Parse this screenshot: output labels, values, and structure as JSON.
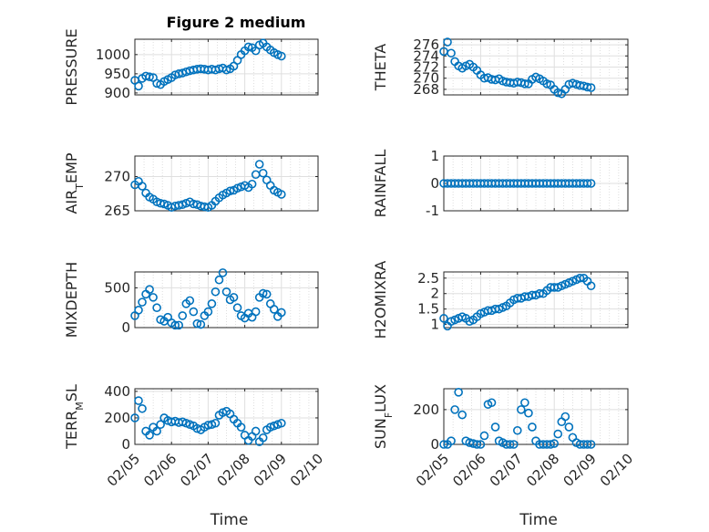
{
  "figure": {
    "title": "Figure 2 medium"
  },
  "colors": {
    "marker": "#0072BD",
    "axis": "#262626",
    "grid": "#dfdfdf"
  },
  "chart_data": [
    {
      "type": "scatter",
      "ylabel": "PRESSURE",
      "xlabel": "",
      "xlim": [
        0,
        5
      ],
      "ylim": [
        895,
        1040
      ],
      "yticks": [
        900,
        950,
        1000
      ],
      "xticks": [],
      "grid": true,
      "x": [
        0.0,
        0.1,
        0.2,
        0.3,
        0.4,
        0.5,
        0.6,
        0.7,
        0.8,
        0.9,
        1.0,
        1.1,
        1.2,
        1.3,
        1.4,
        1.5,
        1.6,
        1.7,
        1.8,
        1.9,
        2.0,
        2.1,
        2.2,
        2.3,
        2.4,
        2.5,
        2.6,
        2.7,
        2.8,
        2.9,
        3.0,
        3.1,
        3.2,
        3.3,
        3.4,
        3.5,
        3.6,
        3.7,
        3.8,
        3.9,
        4.0
      ],
      "y": [
        933,
        918,
        938,
        944,
        942,
        940,
        925,
        922,
        930,
        935,
        940,
        947,
        950,
        952,
        955,
        958,
        960,
        962,
        963,
        962,
        960,
        962,
        960,
        963,
        965,
        960,
        963,
        970,
        985,
        1000,
        1010,
        1020,
        1018,
        1010,
        1025,
        1030,
        1020,
        1012,
        1005,
        1000,
        996
      ]
    },
    {
      "type": "scatter",
      "ylabel": "THETA",
      "xlabel": "",
      "xlim": [
        0,
        5
      ],
      "ylim": [
        267,
        277
      ],
      "yticks": [
        268,
        270,
        272,
        274,
        276
      ],
      "xticks": [],
      "grid": true,
      "x": [
        0.0,
        0.1,
        0.2,
        0.3,
        0.4,
        0.5,
        0.6,
        0.7,
        0.8,
        0.9,
        1.0,
        1.1,
        1.2,
        1.3,
        1.4,
        1.5,
        1.6,
        1.7,
        1.8,
        1.9,
        2.0,
        2.1,
        2.2,
        2.3,
        2.4,
        2.5,
        2.6,
        2.7,
        2.8,
        2.9,
        3.0,
        3.1,
        3.2,
        3.3,
        3.4,
        3.5,
        3.6,
        3.7,
        3.8,
        3.9,
        4.0
      ],
      "y": [
        274.8,
        276.5,
        274.5,
        273.0,
        272.2,
        271.8,
        272.2,
        272.5,
        272.0,
        271.4,
        270.6,
        270.0,
        270.1,
        269.8,
        269.7,
        269.9,
        269.5,
        269.3,
        269.2,
        269.1,
        269.3,
        269.2,
        269.0,
        269.0,
        269.8,
        270.2,
        269.9,
        269.5,
        269.0,
        268.8,
        268.0,
        267.4,
        267.2,
        268.0,
        268.9,
        269.1,
        268.9,
        268.7,
        268.6,
        268.4,
        268.3
      ]
    },
    {
      "type": "scatter",
      "ylabel": "AIR_TEMP",
      "xlabel": "",
      "xlim": [
        0,
        5
      ],
      "ylim": [
        265,
        273
      ],
      "yticks": [
        265,
        270
      ],
      "xticks": [],
      "grid": true,
      "x": [
        0.0,
        0.1,
        0.2,
        0.3,
        0.4,
        0.5,
        0.6,
        0.7,
        0.8,
        0.9,
        1.0,
        1.1,
        1.2,
        1.3,
        1.4,
        1.5,
        1.6,
        1.7,
        1.8,
        1.9,
        2.0,
        2.1,
        2.2,
        2.3,
        2.4,
        2.5,
        2.6,
        2.7,
        2.8,
        2.9,
        3.0,
        3.1,
        3.2,
        3.3,
        3.4,
        3.5,
        3.6,
        3.7,
        3.8,
        3.9,
        4.0
      ],
      "y": [
        268.8,
        269.3,
        268.6,
        267.6,
        267.0,
        266.7,
        266.3,
        266.1,
        266.0,
        265.8,
        265.5,
        265.7,
        265.8,
        265.9,
        266.1,
        266.3,
        266.0,
        265.9,
        265.7,
        265.6,
        265.5,
        265.8,
        266.4,
        266.9,
        267.3,
        267.6,
        267.9,
        268.0,
        268.3,
        268.5,
        268.7,
        268.4,
        268.9,
        270.3,
        271.8,
        270.5,
        269.5,
        268.7,
        268.0,
        267.7,
        267.4
      ]
    },
    {
      "type": "scatter",
      "ylabel": "RAINFALL",
      "xlabel": "",
      "xlim": [
        0,
        5
      ],
      "ylim": [
        -1,
        1
      ],
      "yticks": [
        -1,
        0,
        1
      ],
      "xticks": [],
      "grid": true,
      "x": [
        0.0,
        0.1,
        0.2,
        0.3,
        0.4,
        0.5,
        0.6,
        0.7,
        0.8,
        0.9,
        1.0,
        1.1,
        1.2,
        1.3,
        1.4,
        1.5,
        1.6,
        1.7,
        1.8,
        1.9,
        2.0,
        2.1,
        2.2,
        2.3,
        2.4,
        2.5,
        2.6,
        2.7,
        2.8,
        2.9,
        3.0,
        3.1,
        3.2,
        3.3,
        3.4,
        3.5,
        3.6,
        3.7,
        3.8,
        3.9,
        4.0
      ],
      "y": [
        0,
        0,
        0,
        0,
        0,
        0,
        0,
        0,
        0,
        0,
        0,
        0,
        0,
        0,
        0,
        0,
        0,
        0,
        0,
        0,
        0,
        0,
        0,
        0,
        0,
        0,
        0,
        0,
        0,
        0,
        0,
        0,
        0,
        0,
        0,
        0,
        0,
        0,
        0,
        0,
        0
      ]
    },
    {
      "type": "scatter",
      "ylabel": "MIXDEPTH",
      "xlabel": "",
      "xlim": [
        0,
        5
      ],
      "ylim": [
        0,
        700
      ],
      "yticks": [
        0,
        500
      ],
      "xticks": [],
      "grid": true,
      "x": [
        0.0,
        0.1,
        0.2,
        0.3,
        0.4,
        0.5,
        0.6,
        0.7,
        0.8,
        0.9,
        1.0,
        1.1,
        1.2,
        1.3,
        1.4,
        1.5,
        1.6,
        1.7,
        1.8,
        1.9,
        2.0,
        2.1,
        2.2,
        2.3,
        2.4,
        2.5,
        2.6,
        2.7,
        2.8,
        2.9,
        3.0,
        3.1,
        3.2,
        3.3,
        3.4,
        3.5,
        3.6,
        3.7,
        3.8,
        3.9,
        4.0
      ],
      "y": [
        150,
        220,
        320,
        420,
        480,
        380,
        250,
        100,
        80,
        130,
        60,
        30,
        30,
        150,
        300,
        340,
        200,
        50,
        40,
        150,
        200,
        300,
        450,
        600,
        690,
        450,
        350,
        380,
        250,
        150,
        120,
        180,
        130,
        200,
        380,
        430,
        420,
        300,
        230,
        140,
        190
      ]
    },
    {
      "type": "scatter",
      "ylabel": "H2OMIXRA",
      "xlabel": "",
      "xlim": [
        0,
        5
      ],
      "ylim": [
        0.9,
        2.7
      ],
      "yticks": [
        1,
        1.5,
        2,
        2.5
      ],
      "xticks": [],
      "grid": true,
      "x": [
        0.0,
        0.1,
        0.2,
        0.3,
        0.4,
        0.5,
        0.6,
        0.7,
        0.8,
        0.9,
        1.0,
        1.1,
        1.2,
        1.3,
        1.4,
        1.5,
        1.6,
        1.7,
        1.8,
        1.9,
        2.0,
        2.1,
        2.2,
        2.3,
        2.4,
        2.5,
        2.6,
        2.7,
        2.8,
        2.9,
        3.0,
        3.1,
        3.2,
        3.3,
        3.4,
        3.5,
        3.6,
        3.7,
        3.8,
        3.9,
        4.0
      ],
      "y": [
        1.2,
        0.95,
        1.1,
        1.15,
        1.2,
        1.25,
        1.2,
        1.1,
        1.15,
        1.25,
        1.35,
        1.4,
        1.45,
        1.45,
        1.5,
        1.5,
        1.55,
        1.6,
        1.7,
        1.8,
        1.85,
        1.85,
        1.9,
        1.9,
        1.95,
        1.95,
        2.0,
        2.0,
        2.1,
        2.2,
        2.2,
        2.2,
        2.25,
        2.3,
        2.35,
        2.4,
        2.45,
        2.5,
        2.5,
        2.4,
        2.25
      ]
    },
    {
      "type": "scatter",
      "ylabel": "TERR_MSL",
      "xlabel": "Time",
      "xlim": [
        0,
        5
      ],
      "ylim": [
        0,
        420
      ],
      "yticks": [
        0,
        200,
        400
      ],
      "xticks": [
        0,
        1,
        2,
        3,
        4,
        5
      ],
      "xticklabels": [
        "02/05",
        "02/06",
        "02/07",
        "02/08",
        "02/09",
        "02/10"
      ],
      "grid": true,
      "x": [
        0.0,
        0.1,
        0.2,
        0.3,
        0.4,
        0.5,
        0.6,
        0.7,
        0.8,
        0.9,
        1.0,
        1.1,
        1.2,
        1.3,
        1.4,
        1.5,
        1.6,
        1.7,
        1.8,
        1.9,
        2.0,
        2.1,
        2.2,
        2.3,
        2.4,
        2.5,
        2.6,
        2.7,
        2.8,
        2.9,
        3.0,
        3.1,
        3.2,
        3.3,
        3.4,
        3.5,
        3.6,
        3.7,
        3.8,
        3.9,
        4.0
      ],
      "y": [
        200,
        330,
        270,
        100,
        70,
        130,
        100,
        150,
        200,
        180,
        170,
        175,
        165,
        170,
        160,
        150,
        140,
        120,
        110,
        130,
        145,
        150,
        160,
        220,
        240,
        250,
        230,
        190,
        160,
        130,
        70,
        30,
        60,
        100,
        20,
        50,
        110,
        130,
        140,
        150,
        160
      ]
    },
    {
      "type": "scatter",
      "ylabel": "SUN_FLUX",
      "xlabel": "Time",
      "xlim": [
        0,
        5
      ],
      "ylim": [
        0,
        320
      ],
      "yticks": [
        0,
        200
      ],
      "xticks": [
        0,
        1,
        2,
        3,
        4,
        5
      ],
      "xticklabels": [
        "02/05",
        "02/06",
        "02/07",
        "02/08",
        "02/09",
        "02/10"
      ],
      "grid": true,
      "x": [
        0.0,
        0.1,
        0.2,
        0.3,
        0.4,
        0.5,
        0.6,
        0.7,
        0.8,
        0.9,
        1.0,
        1.1,
        1.2,
        1.3,
        1.4,
        1.5,
        1.6,
        1.7,
        1.8,
        1.9,
        2.0,
        2.1,
        2.2,
        2.3,
        2.4,
        2.5,
        2.6,
        2.7,
        2.8,
        2.9,
        3.0,
        3.1,
        3.2,
        3.3,
        3.4,
        3.5,
        3.6,
        3.7,
        3.8,
        3.9,
        4.0
      ],
      "y": [
        0,
        0,
        20,
        200,
        300,
        170,
        20,
        10,
        5,
        0,
        0,
        50,
        230,
        240,
        100,
        20,
        10,
        0,
        0,
        0,
        80,
        200,
        240,
        180,
        100,
        20,
        0,
        0,
        0,
        0,
        5,
        60,
        130,
        160,
        100,
        40,
        10,
        0,
        0,
        0,
        0
      ]
    }
  ]
}
